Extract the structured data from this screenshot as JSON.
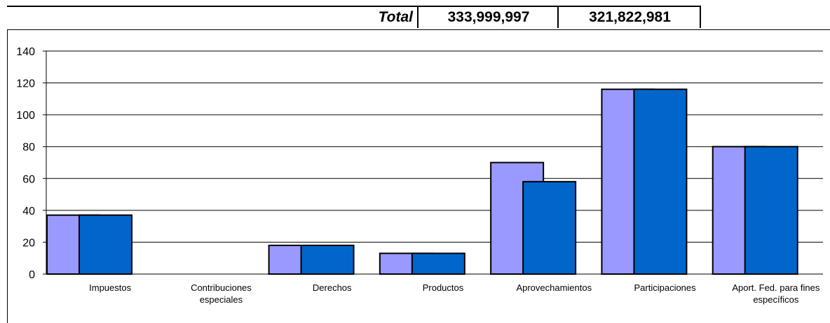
{
  "totals": {
    "label": "Total",
    "value_1": "333,999,997",
    "value_2": "321,822,981"
  },
  "chart_data": {
    "type": "bar",
    "categories": [
      [
        "Impuestos"
      ],
      [
        "Contribuciones",
        "especiales"
      ],
      [
        "Derechos"
      ],
      [
        "Productos"
      ],
      [
        "Aprovechamientos"
      ],
      [
        "Participaciones"
      ],
      [
        "Aport. Fed. para fines",
        "específicos"
      ]
    ],
    "series": [
      {
        "values": [
          37,
          0,
          18,
          13,
          70,
          116,
          80
        ],
        "color": "#9999ff"
      },
      {
        "values": [
          37,
          0,
          18,
          13,
          58,
          116,
          80
        ],
        "color": "#0066cc"
      }
    ],
    "ylim": [
      0,
      140
    ],
    "yticks": [
      0,
      20,
      40,
      60,
      80,
      100,
      120,
      140
    ],
    "grid": true
  }
}
